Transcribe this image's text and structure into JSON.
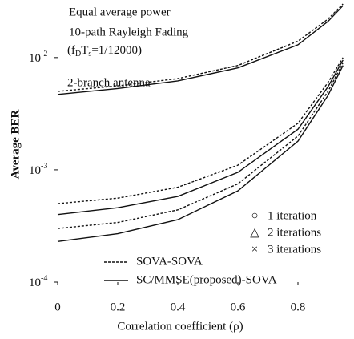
{
  "chart_data": {
    "type": "line",
    "log_y": true,
    "x_label": "Correlation coefficient (ρ)",
    "y_label": "Average BER",
    "annotations": [
      "Equal average power",
      "10-path Rayleigh Fading",
      "2-branch antenna"
    ],
    "param_parts": [
      "(f",
      "D",
      "T",
      "s",
      "=1/12000)"
    ],
    "x": [
      0,
      0.2,
      0.4,
      0.6,
      0.8,
      0.9,
      0.95
    ],
    "xlim": [
      0,
      0.98
    ],
    "xticks": [
      0,
      0.2,
      0.4,
      0.6,
      0.8
    ],
    "ylim": [
      0.0001,
      0.03
    ],
    "yticks": [
      {
        "value": 0.01,
        "label": "10",
        "exponent": "-2"
      },
      {
        "value": 0.001,
        "label": "10",
        "exponent": "-3"
      },
      {
        "value": 0.0001,
        "label": "10",
        "exponent": "-4"
      }
    ],
    "methods": [
      {
        "name": "SOVA-SOVA",
        "dashed": true
      },
      {
        "name": "SC/MMSE(proposed)-SOVA",
        "dashed": false
      }
    ],
    "iterations": [
      {
        "symbol": "○",
        "label": "1 iteration"
      },
      {
        "symbol": "△",
        "label": "2 iterations"
      },
      {
        "symbol": "×",
        "label": "3 iterations"
      }
    ],
    "color": "#111111",
    "series": [
      {
        "method": 0,
        "iteration": 0,
        "values": [
          0.005,
          0.0056,
          0.0065,
          0.0085,
          0.014,
          0.022,
          0.03
        ]
      },
      {
        "method": 1,
        "iteration": 0,
        "values": [
          0.0047,
          0.0053,
          0.0062,
          0.0081,
          0.013,
          0.021,
          0.029
        ]
      },
      {
        "method": 0,
        "iteration": 1,
        "values": [
          0.0005,
          0.00056,
          0.0007,
          0.0011,
          0.0026,
          0.006,
          0.01
        ]
      },
      {
        "method": 1,
        "iteration": 1,
        "values": [
          0.0004,
          0.00046,
          0.00058,
          0.00095,
          0.0023,
          0.0055,
          0.0095
        ]
      },
      {
        "method": 0,
        "iteration": 2,
        "values": [
          0.0003,
          0.00034,
          0.00044,
          0.00075,
          0.002,
          0.005,
          0.009
        ]
      },
      {
        "method": 1,
        "iteration": 2,
        "values": [
          0.00023,
          0.00027,
          0.00036,
          0.00065,
          0.0018,
          0.0046,
          0.0085
        ]
      }
    ]
  }
}
